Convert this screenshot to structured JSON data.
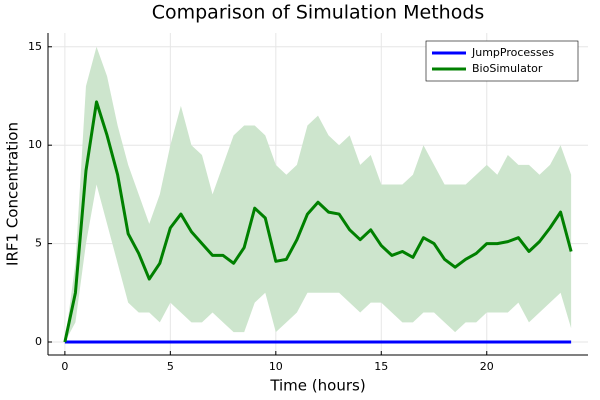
{
  "chart_data": {
    "type": "line",
    "title": "Comparison of Simulation Methods",
    "x_label": "Time (hours)",
    "y_label": "IRF1 Concentration",
    "x": [
      0,
      0.5,
      1,
      1.5,
      2,
      2.5,
      3,
      3.5,
      4,
      4.5,
      5,
      5.5,
      6,
      6.5,
      7,
      7.5,
      8,
      8.5,
      9,
      9.5,
      10,
      10.5,
      11,
      11.5,
      12,
      12.5,
      13,
      13.5,
      14,
      14.5,
      15,
      15.5,
      16,
      16.5,
      17,
      17.5,
      18,
      18.5,
      19,
      19.5,
      20,
      20.5,
      21,
      21.5,
      22,
      22.5,
      23,
      23.5,
      24
    ],
    "series": [
      {
        "name": "JumpProcesses",
        "color": "#0000ff",
        "values": [
          0,
          0,
          0,
          0,
          0,
          0,
          0,
          0,
          0,
          0,
          0,
          0,
          0,
          0,
          0,
          0,
          0,
          0,
          0,
          0,
          0,
          0,
          0,
          0,
          0,
          0,
          0,
          0,
          0,
          0,
          0,
          0,
          0,
          0,
          0,
          0,
          0,
          0,
          0,
          0,
          0,
          0,
          0,
          0,
          0,
          0,
          0,
          0,
          0
        ]
      },
      {
        "name": "BioSimulator",
        "color": "#008000",
        "values": [
          0,
          2.5,
          8.7,
          12.2,
          10.5,
          8.5,
          5.5,
          4.5,
          3.2,
          4.0,
          5.8,
          6.5,
          5.6,
          5.0,
          4.4,
          4.4,
          4.0,
          4.8,
          6.8,
          6.3,
          4.1,
          4.2,
          5.2,
          6.5,
          7.1,
          6.6,
          6.5,
          5.7,
          5.2,
          5.7,
          4.9,
          4.4,
          4.6,
          4.3,
          5.3,
          5.0,
          4.2,
          3.8,
          4.2,
          4.5,
          5.0,
          5.0,
          5.1,
          5.3,
          4.6,
          5.1,
          5.8,
          6.6,
          4.6
        ],
        "band": {
          "color": "#cde5cd",
          "upper": [
            0,
            4,
            13,
            15,
            13.5,
            11,
            9,
            7.5,
            6,
            7.5,
            10,
            12,
            10,
            9.5,
            7.5,
            9,
            10.5,
            11,
            11,
            10.5,
            9,
            8.5,
            9,
            11,
            11.5,
            10.5,
            10,
            10.5,
            9,
            9.5,
            8,
            8,
            8,
            8.5,
            10,
            9,
            8,
            8,
            8,
            8.5,
            9,
            8.5,
            9.5,
            9,
            9,
            8.5,
            9,
            10,
            8.5
          ],
          "lower": [
            0,
            1,
            5,
            8,
            6,
            4,
            2,
            1.5,
            1.5,
            1,
            2,
            1.5,
            1,
            1,
            1.5,
            1,
            0.5,
            0.5,
            2,
            2.5,
            0.5,
            1,
            1.5,
            2.5,
            2.5,
            2.5,
            2.5,
            2,
            1.5,
            2,
            2,
            1.5,
            1,
            1,
            1.5,
            1.5,
            1,
            0.5,
            1,
            1,
            1.5,
            1.5,
            1.5,
            2,
            1,
            1.5,
            2,
            2.5,
            0.7
          ]
        }
      }
    ],
    "xlim": [
      -0.8,
      24.8
    ],
    "xticks": [
      0,
      5,
      10,
      15,
      20
    ],
    "ylim": [
      -0.66,
      15.7
    ],
    "yticks": [
      0,
      5,
      10,
      15
    ],
    "grid": true,
    "legend": "top-right"
  }
}
